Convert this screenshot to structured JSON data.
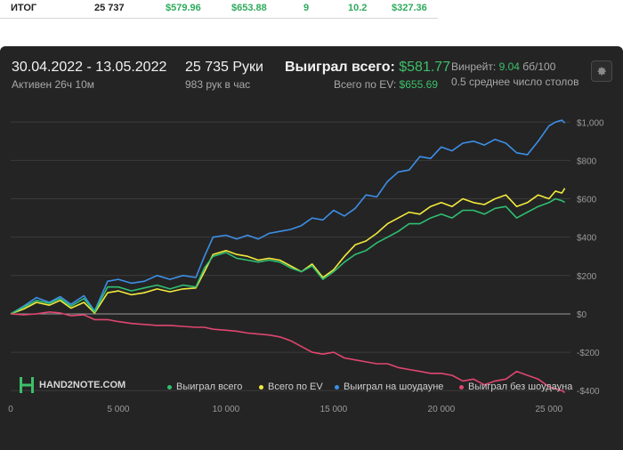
{
  "summary": {
    "label": "ИТОГ",
    "hands": "25 737",
    "won": "$579.96",
    "ev": "$653.88",
    "col4": "9",
    "col5": "10.2",
    "col6": "$327.36"
  },
  "header": {
    "date_range": "30.04.2022 - 13.05.2022",
    "active": "Активен 26ч 10м",
    "hands": "25 735 Руки",
    "hands_per_hour": "983 рук в час",
    "won_label": "Выиграл всего:",
    "won_value": "$581.77",
    "ev_label": "Всего по EV:",
    "ev_value": "$655.69",
    "winrate_label": "Винрейт:",
    "winrate_value": "9.04",
    "winrate_unit": "бб/100",
    "tables": "0.5 среднее число столов"
  },
  "watermark": "HAND2NOTE.COM",
  "colors": {
    "won": "#2fbf71",
    "ev": "#f2ea3c",
    "showdown": "#3d8fe8",
    "no_showdown": "#e0466f",
    "positive": "#3cc06a"
  },
  "chart_data": {
    "type": "line",
    "xlim": [
      0,
      26000
    ],
    "ylim": [
      -450,
      1080
    ],
    "x_ticks": [
      0,
      5000,
      10000,
      15000,
      20000,
      25000
    ],
    "x_tick_labels": [
      "0",
      "5 000",
      "10 000",
      "15 000",
      "20 000",
      "25 000"
    ],
    "y_ticks": [
      1000,
      800,
      600,
      400,
      200,
      0,
      -200,
      -400
    ],
    "y_tick_labels": [
      "$1,000",
      "$800",
      "$600",
      "$400",
      "$200",
      "$0",
      "-$200",
      "-$400"
    ],
    "grid": true,
    "legend_position": "bottom",
    "series": [
      {
        "name": "Выиграл на шоудауне",
        "color": "#3d8fe8",
        "x": [
          0,
          600,
          1200,
          1800,
          2300,
          2800,
          3400,
          3900,
          4500,
          5000,
          5600,
          6200,
          6800,
          7400,
          8000,
          8600,
          9000,
          9400,
          10000,
          10500,
          11000,
          11500,
          12000,
          12500,
          13000,
          13500,
          14000,
          14500,
          15000,
          15500,
          16000,
          16500,
          17000,
          17500,
          18000,
          18500,
          19000,
          19500,
          20000,
          20500,
          21000,
          21500,
          22000,
          22500,
          23000,
          23500,
          24000,
          24500,
          25000,
          25300,
          25600,
          25735
        ],
        "y": [
          0,
          40,
          85,
          60,
          90,
          50,
          95,
          15,
          170,
          180,
          160,
          170,
          200,
          180,
          200,
          190,
          300,
          400,
          410,
          390,
          410,
          390,
          420,
          430,
          440,
          460,
          500,
          490,
          540,
          510,
          550,
          620,
          610,
          690,
          740,
          750,
          820,
          810,
          870,
          850,
          890,
          900,
          880,
          910,
          890,
          840,
          830,
          900,
          980,
          1000,
          1010,
          995
        ]
      },
      {
        "name": "Всего по EV",
        "color": "#f2ea3c",
        "x": [
          0,
          600,
          1200,
          1800,
          2300,
          2800,
          3400,
          3900,
          4500,
          5000,
          5600,
          6200,
          6800,
          7400,
          8000,
          8600,
          9000,
          9400,
          10000,
          10500,
          11000,
          11500,
          12000,
          12500,
          13000,
          13500,
          14000,
          14500,
          15000,
          15500,
          16000,
          16500,
          17000,
          17500,
          18000,
          18500,
          19000,
          19500,
          20000,
          20500,
          21000,
          21500,
          22000,
          22500,
          23000,
          23500,
          24000,
          24500,
          25000,
          25300,
          25600,
          25735
        ],
        "y": [
          0,
          25,
          60,
          45,
          70,
          30,
          60,
          5,
          110,
          120,
          100,
          110,
          130,
          115,
          130,
          135,
          220,
          310,
          330,
          310,
          300,
          280,
          290,
          280,
          250,
          220,
          260,
          190,
          230,
          300,
          360,
          380,
          420,
          470,
          500,
          530,
          520,
          560,
          580,
          560,
          600,
          580,
          570,
          600,
          620,
          560,
          580,
          620,
          600,
          640,
          630,
          655
        ]
      },
      {
        "name": "Выиграл всего",
        "color": "#2fbf71",
        "x": [
          0,
          600,
          1200,
          1800,
          2300,
          2800,
          3400,
          3900,
          4500,
          5000,
          5600,
          6200,
          6800,
          7400,
          8000,
          8600,
          9000,
          9400,
          10000,
          10500,
          11000,
          11500,
          12000,
          12500,
          13000,
          13500,
          14000,
          14500,
          15000,
          15500,
          16000,
          16500,
          17000,
          17500,
          18000,
          18500,
          19000,
          19500,
          20000,
          20500,
          21000,
          21500,
          22000,
          22500,
          23000,
          23500,
          24000,
          24500,
          25000,
          25300,
          25600,
          25735
        ],
        "y": [
          0,
          35,
          70,
          55,
          80,
          40,
          80,
          10,
          140,
          140,
          120,
          135,
          150,
          130,
          150,
          140,
          240,
          300,
          320,
          290,
          280,
          270,
          280,
          270,
          240,
          220,
          250,
          180,
          220,
          270,
          310,
          330,
          370,
          400,
          430,
          470,
          470,
          500,
          520,
          500,
          540,
          540,
          520,
          550,
          560,
          500,
          530,
          560,
          580,
          600,
          590,
          582
        ]
      },
      {
        "name": "Выиграл без шоудауна",
        "color": "#e0466f",
        "x": [
          0,
          600,
          1200,
          1800,
          2300,
          2800,
          3400,
          3900,
          4500,
          5000,
          5600,
          6200,
          6800,
          7400,
          8000,
          8600,
          9000,
          9400,
          10000,
          10500,
          11000,
          11500,
          12000,
          12500,
          13000,
          13500,
          14000,
          14500,
          15000,
          15500,
          16000,
          16500,
          17000,
          17500,
          18000,
          18500,
          19000,
          19500,
          20000,
          20500,
          21000,
          21500,
          22000,
          22500,
          23000,
          23500,
          24000,
          24500,
          25000,
          25300,
          25600,
          25735
        ],
        "y": [
          0,
          -5,
          0,
          10,
          5,
          -10,
          -5,
          -30,
          -30,
          -40,
          -50,
          -55,
          -60,
          -60,
          -65,
          -70,
          -70,
          -80,
          -85,
          -90,
          -100,
          -105,
          -110,
          -120,
          -140,
          -170,
          -200,
          -210,
          -200,
          -230,
          -240,
          -250,
          -260,
          -260,
          -280,
          -290,
          -300,
          -310,
          -310,
          -320,
          -350,
          -340,
          -370,
          -350,
          -340,
          -300,
          -320,
          -340,
          -380,
          -390,
          -400,
          -410
        ]
      }
    ]
  },
  "legend": [
    {
      "label": "Выиграл всего",
      "color": "#2fbf71"
    },
    {
      "label": "Всего по EV",
      "color": "#f2ea3c"
    },
    {
      "label": "Выиграл на шоудауне",
      "color": "#3d8fe8"
    },
    {
      "label": "Выиграл без шоудауна",
      "color": "#e0466f"
    }
  ]
}
